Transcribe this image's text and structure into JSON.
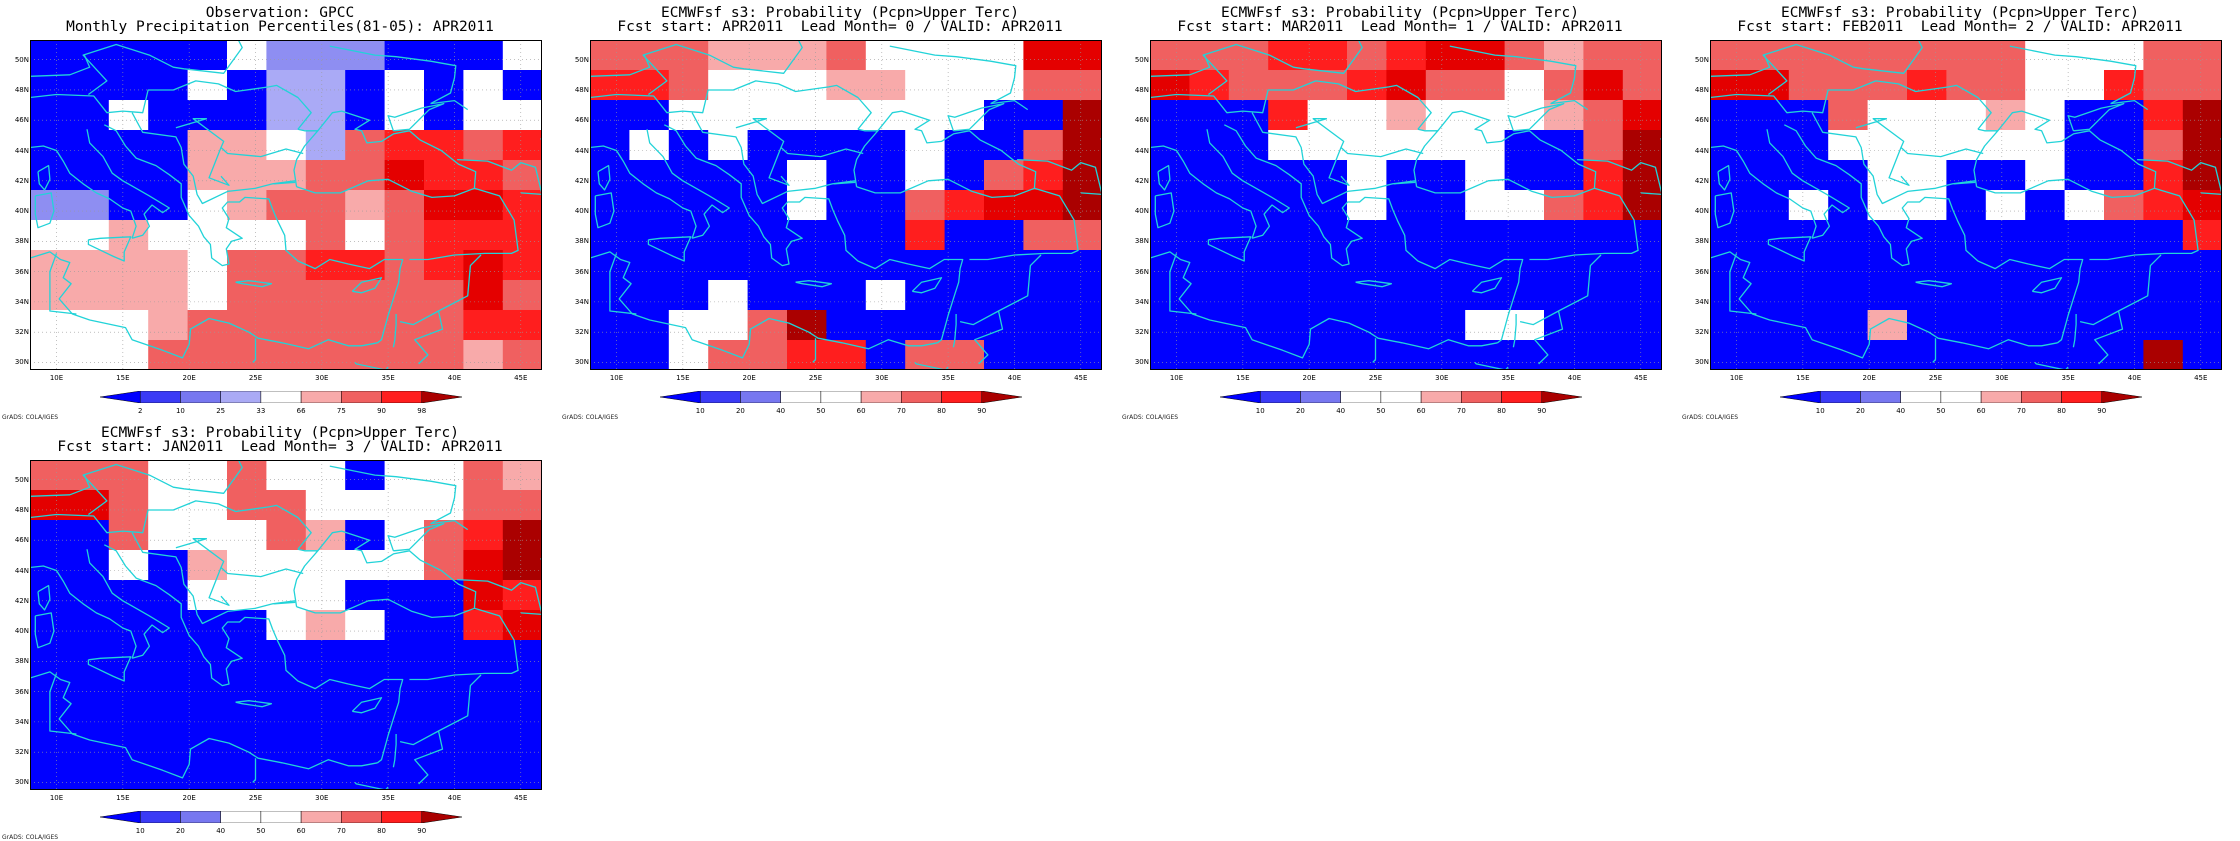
{
  "map_labels": {
    "lat": [
      "50N",
      "48N",
      "46N",
      "44N",
      "42N",
      "40N",
      "38N",
      "36N",
      "34N",
      "32N",
      "30N"
    ],
    "lon": [
      "10E",
      "15E",
      "20E",
      "25E",
      "30E",
      "35E",
      "40E",
      "45E"
    ],
    "credit": "GrADS: COLA/IGES"
  },
  "legends": {
    "obs": {
      "labels": [
        "2",
        "10",
        "25",
        "33",
        "66",
        "75",
        "90",
        "98"
      ],
      "colors": [
        "#0000ff",
        "#3a3af5",
        "#7777f0",
        "#aaaaf5",
        "#ffffff",
        "#f8aaaa",
        "#f06060",
        "#ff1e1e",
        "#aa0000"
      ]
    },
    "prob": {
      "labels": [
        "10",
        "20",
        "40",
        "50",
        "60",
        "70",
        "80",
        "90"
      ],
      "colors": [
        "#0000ff",
        "#3a3af5",
        "#7777f0",
        "#ffffff",
        "#ffffff",
        "#f8aaaa",
        "#f06060",
        "#ff1e1e",
        "#aa0000"
      ]
    }
  },
  "panels": [
    {
      "title1": "Observation: GPCC",
      "title2": "Monthly Precipitation Percentiles(81-05): APR2011",
      "legend": "obs",
      "grid": [
        "bbbbbwlllbbbw",
        "bbbbwbnnbwbwb",
        "bbwbbbnnbwbww",
        "bbbbppwnrssrs",
        "bbbbppprrRssr",
        "llbbwprrprRRs",
        "wwpwwwwrwrsss",
        "ppppwrrssrsRs",
        "ppppwrrrrrrRr",
        "wwwprrrrrrrss",
        "wwwrrrrrrrrpr"
      ]
    },
    {
      "title1": "ECMWFsf s3: Probability (Pcpn>Upper Terc)",
      "title2": "Fcst start: APR2011  Lead Month= 0 / VALID: APR2011",
      "legend": "prob",
      "grid": [
        "rrrppprwwwwRR",
        "ssrwwwppwwwrr",
        "bbwwwwwwwwbbd",
        "bwbwbbbbwbbrd",
        "bbbbbwbbwbrsd",
        "bbbbbwbbrsRRd",
        "bbbbbbbbsbbrr",
        "bbbbbbbbbbbbb",
        "bbbwbbbwbbbbb",
        "bbwwrdbbbbbbb",
        "bbwrrssbrrbbb"
      ]
    },
    {
      "title1": "ECMWFsf s3: Probability (Pcpn>Upper Terc)",
      "title2": "Fcst start: MAR2011  Lead Month= 1 / VALID: APR2011",
      "legend": "prob",
      "grid": [
        "rrrssrsRRrprr",
        "RsrrrsRrrwrRr",
        "bbbswwpwwwprR",
        "bbbwwwwwwbbrd",
        "bbbbbwbbwbbsd",
        "bbbbbwbbwwrsd",
        "bbbbbbbbbbbbb",
        "bbbbbbbbbbbbb",
        "bbbbbbbbbbbbb",
        "bbbbbbbbwwbbb",
        "bbbbbbbbbbbbb"
      ]
    },
    {
      "title1": "ECMWFsf s3: Probability (Pcpn>Upper Terc)",
      "title2": "Fcst start: FEB2011  Lead Month= 2 / VALID: APR2011",
      "legend": "prob",
      "grid": [
        "rrrrrrrrwwwrr",
        "RRrrrsrrwwsrr",
        "bbbrwwwpwbbsd",
        "bbbwwwwwwbbrd",
        "bbbbwwbbwbbsd",
        "bbwbwwbwbwrsR",
        "bbbbbbbbbbbbs",
        "bbbbbbbbbbbbb",
        "bbbbbbbbbbbbb",
        "bbbbpbbbbbbbb",
        "bbbbbbbbbbbdb"
      ]
    },
    {
      "title1": "ECMWFsf s3: Probability (Pcpn>Upper Terc)",
      "title2": "Fcst start: JAN2011  Lead Month= 3 / VALID: APR2011",
      "legend": "prob",
      "grid": [
        "rrrwwrwwbwwrp",
        "RRrwwrrwwwwrr",
        "bbrwwwrpbwrsd",
        "bbwbpwwwwwrRd",
        "bbbbwwwwbbbRs",
        "bbbbbbwpwbbsR",
        "bbbbbbbbbbbbb",
        "bbbbbbbbbbbbb",
        "bbbbbbbbbbbbb",
        "bbbbbbbbbbbbb",
        "bbbbbbbbbbbbb"
      ]
    }
  ]
}
